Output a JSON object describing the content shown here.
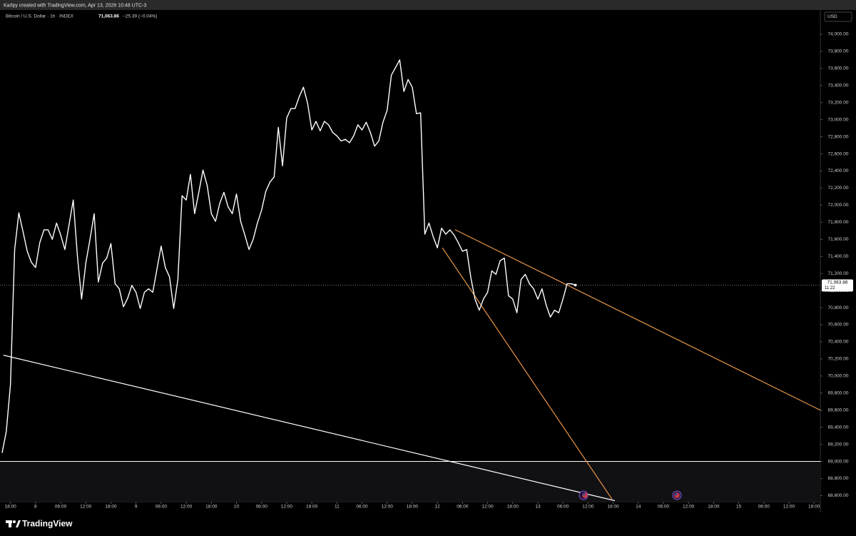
{
  "top_bar": "Karlpy created with TradingView.com, Apr 13, 2026 10:48 UTC-3",
  "header": {
    "price": "71,063.86",
    "change": "−25.39 (−0.04%)"
  },
  "currency": "USD",
  "footer": {
    "brand": "TradingView"
  },
  "chart_data": {
    "type": "line",
    "series": [
      {
        "name": "Bitcoin / U.S. Dollar · 1h · INDEX",
        "color": "#ffffff",
        "x": [
          -8,
          -7,
          -6,
          -5,
          -4,
          -3,
          -2,
          -1,
          0,
          1,
          2,
          3,
          4,
          5,
          6,
          7,
          8,
          9,
          10,
          11,
          12,
          13,
          14,
          15,
          16,
          17,
          18,
          19,
          20,
          21,
          22,
          23,
          24,
          25,
          26,
          27,
          28,
          29,
          30,
          31,
          32,
          33,
          34,
          35,
          36,
          37,
          38,
          39,
          40,
          41,
          42,
          43,
          44,
          45,
          46,
          47,
          48,
          49,
          50,
          51,
          52,
          53,
          54,
          55,
          56,
          57,
          58,
          59,
          60,
          61,
          62,
          63,
          64,
          65,
          66,
          67,
          68,
          69,
          70,
          71,
          72,
          73,
          74,
          75,
          76,
          77,
          78,
          79,
          80,
          81,
          82,
          83,
          84,
          85,
          86,
          87,
          88,
          89,
          90,
          91,
          92,
          93,
          94,
          95,
          96,
          97,
          98,
          99,
          100,
          101,
          102,
          103,
          104,
          105,
          106,
          107,
          108,
          109,
          110,
          111,
          112,
          113,
          114,
          115,
          116,
          117,
          118,
          119,
          120,
          121,
          122,
          123,
          124,
          125,
          126,
          127,
          128,
          129
        ],
        "values": [
          69100,
          69350,
          69900,
          71480,
          71910,
          71690,
          71460,
          71330,
          71270,
          71560,
          71710,
          71710,
          71600,
          71790,
          71650,
          71480,
          71770,
          72060,
          71400,
          70900,
          71320,
          71600,
          71900,
          71100,
          71320,
          71380,
          71550,
          71080,
          71020,
          70810,
          70910,
          71060,
          70980,
          70790,
          70980,
          71020,
          70980,
          71250,
          71520,
          71270,
          71160,
          70790,
          71130,
          72110,
          72060,
          72360,
          71900,
          72150,
          72410,
          72230,
          71900,
          71810,
          72020,
          72150,
          71980,
          71900,
          72130,
          71810,
          71650,
          71480,
          71600,
          71790,
          71940,
          72160,
          72270,
          72330,
          72910,
          72460,
          73020,
          73130,
          73130,
          73270,
          73380,
          73190,
          72880,
          72980,
          72870,
          72980,
          72940,
          72850,
          72810,
          72750,
          72770,
          72730,
          72810,
          72940,
          72880,
          72970,
          72850,
          72690,
          72750,
          72970,
          73110,
          73520,
          73610,
          73700,
          73330,
          73470,
          73380,
          73070,
          73080,
          71660,
          71790,
          71630,
          71500,
          71730,
          71660,
          71710,
          71650,
          71560,
          71460,
          71480,
          71150,
          70900,
          70770,
          70900,
          70980,
          71230,
          71190,
          71350,
          71380,
          70940,
          70900,
          70740,
          71130,
          71190,
          71080,
          71020,
          70900,
          71020,
          70830,
          70690,
          70770,
          70740,
          70900,
          71080,
          71080,
          71063.86
        ]
      }
    ],
    "last_price": {
      "value": 71063.86,
      "label": "71,063.86"
    },
    "countdown": "11:22",
    "hline": {
      "value": 69000,
      "color": "#ffffff"
    },
    "drawings": [
      {
        "color": "#ffffff",
        "points": [
          [
            -7.7,
            70244
          ],
          [
            138.4,
            68541
          ]
        ]
      },
      {
        "color": "#e8964a",
        "points": [
          [
            100.2,
            71713
          ],
          [
            187.5,
            69600
          ]
        ]
      },
      {
        "color": "#e8964a",
        "points": [
          [
            97.2,
            71500
          ],
          [
            137.7,
            68560
          ]
        ]
      }
    ],
    "xlim": [
      -8.5,
      187.5
    ],
    "ylim": [
      68520,
      74150
    ],
    "xticks": [
      {
        "value": -6,
        "label": "18:00"
      },
      {
        "value": 0,
        "label": "8"
      },
      {
        "value": 6,
        "label": "06:00"
      },
      {
        "value": 12,
        "label": "12:00"
      },
      {
        "value": 18,
        "label": "18:00"
      },
      {
        "value": 24,
        "label": "9"
      },
      {
        "value": 30,
        "label": "06:00"
      },
      {
        "value": 36,
        "label": "12:00"
      },
      {
        "value": 42,
        "label": "18:00"
      },
      {
        "value": 48,
        "label": "10"
      },
      {
        "value": 54,
        "label": "06:00"
      },
      {
        "value": 60,
        "label": "12:00"
      },
      {
        "value": 66,
        "label": "18:00"
      },
      {
        "value": 72,
        "label": "11"
      },
      {
        "value": 78,
        "label": "06:00"
      },
      {
        "value": 84,
        "label": "12:00"
      },
      {
        "value": 90,
        "label": "18:00"
      },
      {
        "value": 96,
        "label": "12"
      },
      {
        "value": 102,
        "label": "06:00"
      },
      {
        "value": 108,
        "label": "12:00"
      },
      {
        "value": 114,
        "label": "18:00"
      },
      {
        "value": 120,
        "label": "13"
      },
      {
        "value": 126,
        "label": "06:00"
      },
      {
        "value": 132,
        "label": "12:00"
      },
      {
        "value": 138,
        "label": "18:00"
      },
      {
        "value": 144,
        "label": "14"
      },
      {
        "value": 150,
        "label": "06:00"
      },
      {
        "value": 156,
        "label": "12:00"
      },
      {
        "value": 162,
        "label": "18:00"
      },
      {
        "value": 168,
        "label": "15"
      },
      {
        "value": 174,
        "label": "06:00"
      },
      {
        "value": 180,
        "label": "12:00"
      },
      {
        "value": 186,
        "label": "18:00"
      }
    ],
    "yticks": [
      {
        "value": 68600,
        "label": "68,600.00"
      },
      {
        "value": 68800,
        "label": "68,800.00"
      },
      {
        "value": 69000,
        "label": "69,000.00"
      },
      {
        "value": 69200,
        "label": "69,200.00"
      },
      {
        "value": 69400,
        "label": "69,400.00"
      },
      {
        "value": 69600,
        "label": "69,600.00"
      },
      {
        "value": 69800,
        "label": "69,800.00"
      },
      {
        "value": 70000,
        "label": "70,000.00"
      },
      {
        "value": 70200,
        "label": "70,200.00"
      },
      {
        "value": 70400,
        "label": "70,400.00"
      },
      {
        "value": 70600,
        "label": "70,600.00"
      },
      {
        "value": 70800,
        "label": "70,800.00"
      },
      {
        "value": 71000,
        "label": "71,000.00"
      },
      {
        "value": 71200,
        "label": "71,200.00"
      },
      {
        "value": 71400,
        "label": "71,400.00"
      },
      {
        "value": 71600,
        "label": "71,600.00"
      },
      {
        "value": 71800,
        "label": "71,800.00"
      },
      {
        "value": 72000,
        "label": "72,000.00"
      },
      {
        "value": 72200,
        "label": "72,200.00"
      },
      {
        "value": 72400,
        "label": "72,400.00"
      },
      {
        "value": 72600,
        "label": "72,600.00"
      },
      {
        "value": 72800,
        "label": "72,800.00"
      },
      {
        "value": 73000,
        "label": "73,000.00"
      },
      {
        "value": 73200,
        "label": "73,200.00"
      },
      {
        "value": 73400,
        "label": "73,400.00"
      },
      {
        "value": 73600,
        "label": "73,600.00"
      },
      {
        "value": 73800,
        "label": "73,800.00"
      },
      {
        "value": 74000,
        "label": "74,000.00"
      }
    ]
  }
}
